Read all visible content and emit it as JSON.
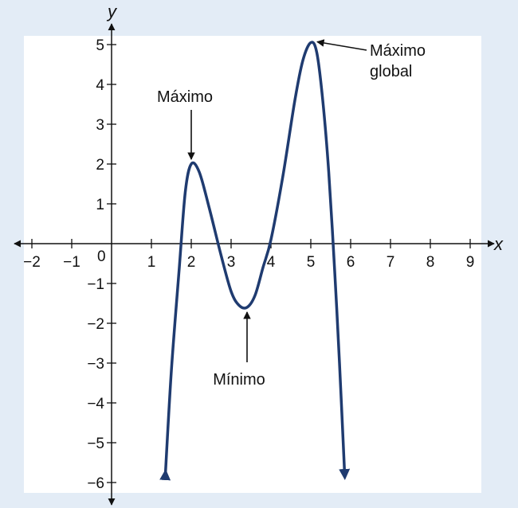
{
  "chart_data": {
    "type": "line",
    "xlabel": "x",
    "ylabel": "y",
    "xlim": [
      -2,
      9
    ],
    "ylim": [
      -6,
      5
    ],
    "x_ticks": [
      {
        "value": -2,
        "label": "−2"
      },
      {
        "value": -1,
        "label": "−1"
      },
      {
        "value": 1,
        "label": "1"
      },
      {
        "value": 2,
        "label": "2"
      },
      {
        "value": 3,
        "label": "3"
      },
      {
        "value": 4,
        "label": "4"
      },
      {
        "value": 5,
        "label": "5"
      },
      {
        "value": 6,
        "label": "6"
      },
      {
        "value": 7,
        "label": "7"
      },
      {
        "value": 8,
        "label": "8"
      },
      {
        "value": 9,
        "label": "9"
      }
    ],
    "y_ticks": [
      {
        "value": 5,
        "label": "5"
      },
      {
        "value": 4,
        "label": "4"
      },
      {
        "value": 3,
        "label": "3"
      },
      {
        "value": 2,
        "label": "2"
      },
      {
        "value": 1,
        "label": "1"
      },
      {
        "value": -1,
        "label": "−1"
      },
      {
        "value": -2,
        "label": "−2"
      },
      {
        "value": -3,
        "label": "−3"
      },
      {
        "value": -4,
        "label": "−4"
      },
      {
        "value": -5,
        "label": "−5"
      },
      {
        "value": -6,
        "label": "−6"
      }
    ],
    "origin_label": "0",
    "series": [
      {
        "color": "#1f3b70",
        "x": [
          1.35,
          1.5,
          1.7,
          1.85,
          2.0,
          2.2,
          2.45,
          2.75,
          3.0,
          3.2,
          3.4,
          3.6,
          3.8,
          4.0,
          4.3,
          4.6,
          4.8,
          5.0,
          5.15,
          5.3,
          5.45,
          5.6,
          5.72,
          5.85
        ],
        "y": [
          -5.8,
          -3.2,
          -0.6,
          1.3,
          2.0,
          1.8,
          0.9,
          -0.3,
          -1.2,
          -1.55,
          -1.6,
          -1.3,
          -0.6,
          0.1,
          1.7,
          3.6,
          4.6,
          5.05,
          4.8,
          3.6,
          1.8,
          -0.7,
          -3.0,
          -5.8
        ]
      }
    ],
    "annotations": [
      {
        "text": "Máximo",
        "x": 2.0,
        "y": 2.0
      },
      {
        "text": "Mínimo",
        "x": 3.4,
        "y": -1.6
      },
      {
        "text": "Máximo global",
        "x": 5.0,
        "y": 5.05
      }
    ]
  }
}
